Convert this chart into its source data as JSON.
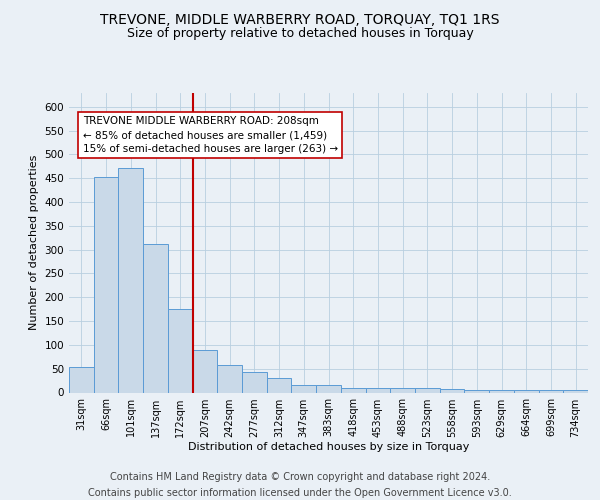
{
  "title": "TREVONE, MIDDLE WARBERRY ROAD, TORQUAY, TQ1 1RS",
  "subtitle": "Size of property relative to detached houses in Torquay",
  "xlabel": "Distribution of detached houses by size in Torquay",
  "ylabel": "Number of detached properties",
  "categories": [
    "31sqm",
    "66sqm",
    "101sqm",
    "137sqm",
    "172sqm",
    "207sqm",
    "242sqm",
    "277sqm",
    "312sqm",
    "347sqm",
    "383sqm",
    "418sqm",
    "453sqm",
    "488sqm",
    "523sqm",
    "558sqm",
    "593sqm",
    "629sqm",
    "664sqm",
    "699sqm",
    "734sqm"
  ],
  "values": [
    54,
    452,
    472,
    311,
    175,
    90,
    58,
    43,
    30,
    15,
    15,
    10,
    10,
    10,
    10,
    8,
    5,
    5,
    5,
    5,
    5
  ],
  "bar_color": "#c9d9e8",
  "bar_edge_color": "#5b9bd5",
  "vline_x": 4.5,
  "vline_color": "#c00000",
  "annotation_text": "TREVONE MIDDLE WARBERRY ROAD: 208sqm\n← 85% of detached houses are smaller (1,459)\n15% of semi-detached houses are larger (263) →",
  "annotation_box_color": "#ffffff",
  "annotation_box_edge_color": "#c00000",
  "ylim": [
    0,
    630
  ],
  "yticks": [
    0,
    50,
    100,
    150,
    200,
    250,
    300,
    350,
    400,
    450,
    500,
    550,
    600
  ],
  "footer_line1": "Contains HM Land Registry data © Crown copyright and database right 2024.",
  "footer_line2": "Contains public sector information licensed under the Open Government Licence v3.0.",
  "bg_color": "#eaf0f6",
  "plot_bg_color": "#eaf0f6",
  "title_fontsize": 10,
  "subtitle_fontsize": 9,
  "footer_fontsize": 7
}
